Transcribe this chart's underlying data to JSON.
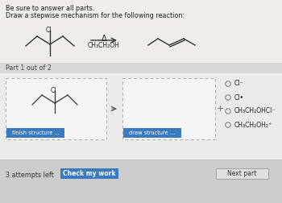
{
  "title_line1": "Be sure to answer all parts.",
  "title_line2": "Draw a stepwise mechanism for the following reaction:",
  "reaction_condition_top": "Δ",
  "reaction_condition_bottom": "CH₃CH₂OH",
  "part_label": "Part 1 out of 2",
  "plus_label": "+",
  "radio_options": [
    "Cl⁻",
    "Cl•",
    "CH₃CH₂OHCl⁻",
    "CH₃CH₂OH₂⁺"
  ],
  "finish_btn_text": "finish structure ...",
  "draw_btn_text": "draw structure ...",
  "attempts_text": "3 attempts left",
  "check_btn_text": "Check my work",
  "next_btn_text": "Next part",
  "bg_color": "#ebebeb",
  "top_bg": "#f0ede8",
  "part_bg": "#d8d8d8",
  "content_bg": "#ebebeb",
  "box_bg": "#f5f5f5",
  "finish_btn_color": "#3a7abf",
  "check_btn_color": "#3a7abf",
  "bottom_bg": "#cccccc",
  "text_color": "#222222",
  "mol_color": "#333333"
}
